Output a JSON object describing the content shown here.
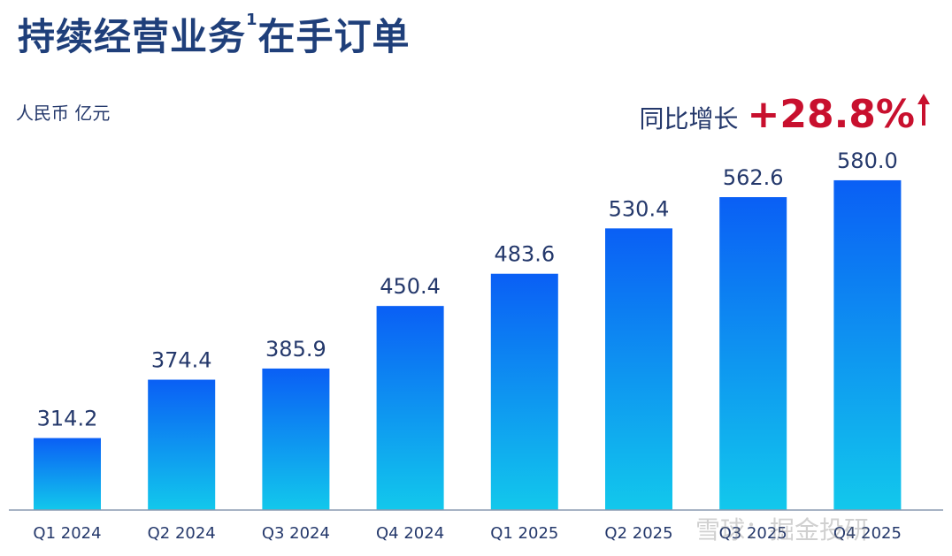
{
  "title": {
    "main": "持续经营业务",
    "sup": "1",
    "rest": "在手订单"
  },
  "unit": "人民币 亿元",
  "yoy": {
    "label": "同比增长",
    "value": "+28.8%",
    "color": "#c8102e"
  },
  "watermark": "雪球：掘金投研",
  "colors": {
    "bar_top": "#0a5ff5",
    "bar_bottom": "#12c8ec",
    "axis": "#8a9ab0",
    "text": "#24386b"
  },
  "chart_data": {
    "type": "bar",
    "title": "持续经营业务1在手订单",
    "ylabel": "人民币 亿元",
    "xlabel": "",
    "categories": [
      "Q1 2024",
      "Q2 2024",
      "Q3 2024",
      "Q4 2024",
      "Q1 2025",
      "Q2 2025",
      "Q3 2025",
      "Q4 2025"
    ],
    "values": [
      314.2,
      374.4,
      385.9,
      450.4,
      483.6,
      530.4,
      562.6,
      580.0
    ],
    "value_labels": [
      "314.2",
      "374.4",
      "385.9",
      "450.4",
      "483.6",
      "530.4",
      "562.6",
      "580.0"
    ],
    "ylim": [
      240,
      600
    ],
    "grid": false,
    "legend": "none"
  }
}
